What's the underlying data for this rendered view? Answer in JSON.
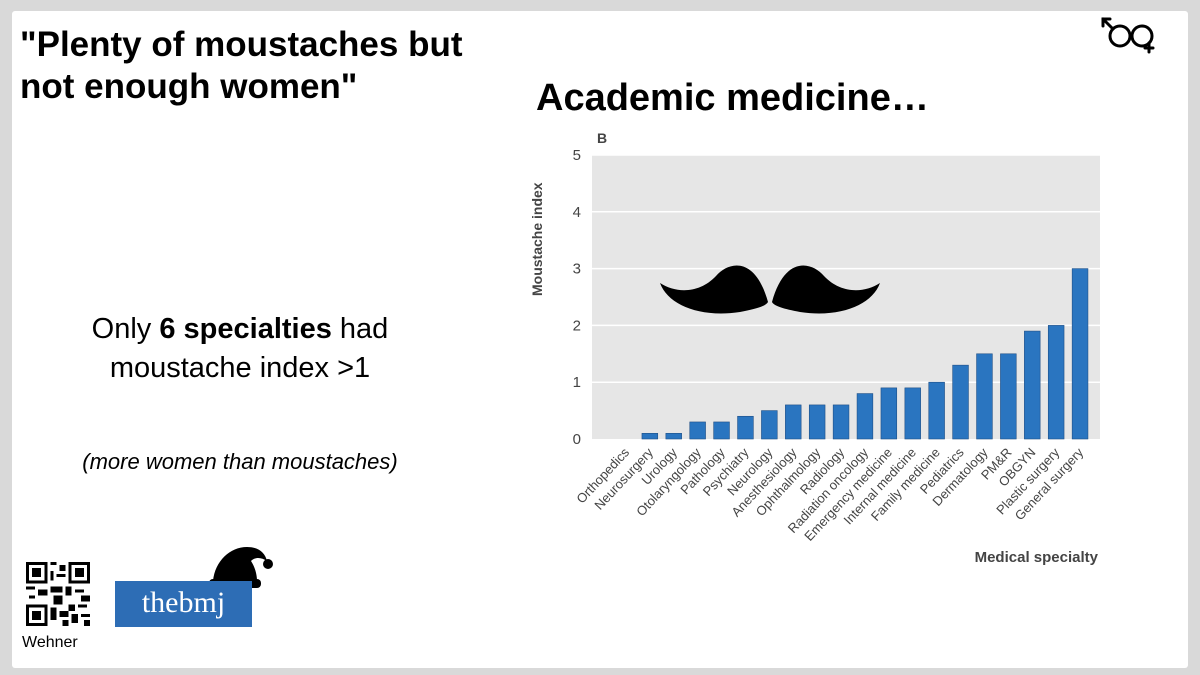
{
  "slide": {
    "quote": "\"Plenty of moustaches but not enough women\"",
    "heading": "Academic medicine…",
    "summary_prefix": "Only ",
    "summary_bold": "6 specialties",
    "summary_suffix": " had moustache index >1",
    "note": "(more women than moustaches)",
    "author": "Wehner",
    "logo_text": "thebmj",
    "icons": [
      "gender-symbol-icon",
      "qr-code-icon",
      "santa-hat-icon",
      "moustache-icon"
    ]
  },
  "chart_data": {
    "type": "bar",
    "panel_label": "B",
    "title": "Academic medicine…",
    "xlabel": "Medical specialty",
    "ylabel": "Moustache index",
    "ylim": [
      0,
      5
    ],
    "yticks": [
      0,
      1,
      2,
      3,
      4,
      5
    ],
    "categories": [
      "Orthopedics",
      "Neurosurgery",
      "Urology",
      "Otolaryngology",
      "Pathology",
      "Psychiatry",
      "Neurology",
      "Anesthesiology",
      "Ophthalmology",
      "Radiology",
      "Radiation oncology",
      "Emergency medicine",
      "Internal medicine",
      "Family medicine",
      "Pediatrics",
      "Dermatology",
      "PM&R",
      "OBGYN",
      "Plastic surgery",
      "General surgery"
    ],
    "values": [
      0.0,
      0.1,
      0.1,
      0.3,
      0.3,
      0.4,
      0.5,
      0.6,
      0.6,
      0.6,
      0.8,
      0.9,
      0.9,
      1.0,
      1.3,
      1.5,
      1.5,
      1.9,
      2.0,
      3.0
    ],
    "bar_color": "#2a75c0",
    "plot_bg": "#e6e6e6",
    "grid": true
  }
}
